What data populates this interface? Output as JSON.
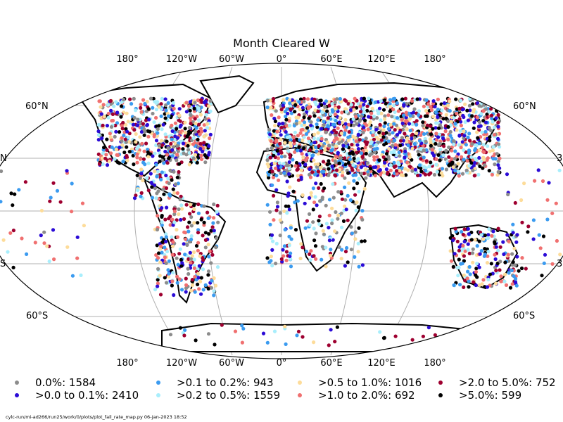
{
  "title": "Month Cleared W",
  "lon_labels_top": [
    "180°",
    "120°W",
    "60°W",
    "0°",
    "60°E",
    "120°E",
    "180°"
  ],
  "lon_labels_bottom": [
    "180°",
    "120°W",
    "60°W",
    "0°",
    "60°E",
    "120°E",
    "180°"
  ],
  "lat_labels_left": [
    "60°N",
    "N",
    "S",
    "60°S"
  ],
  "lat_labels_right": [
    "60°N",
    "3",
    "3",
    "60°S"
  ],
  "legend": [
    {
      "label": "0.0%: 1584",
      "color": "#8c8c8c"
    },
    {
      "label": ">0.0 to 0.1%: 2410",
      "color": "#2b0bd6"
    },
    {
      "label": ">0.1 to 0.2%: 943",
      "color": "#3b9bf0"
    },
    {
      "label": ">0.2 to 0.5%: 1559",
      "color": "#a8eefc"
    },
    {
      "label": ">0.5 to 1.0%: 1016",
      "color": "#fddc9a"
    },
    {
      "label": ">1.0 to 2.0%: 692",
      "color": "#f07070"
    },
    {
      "label": ">2.0 to 5.0%: 752",
      "color": "#9e0030"
    },
    {
      "label": ">5.0%: 599",
      "color": "#000000"
    }
  ],
  "footer": "cylc-run/mi-ad266/run25/work/0/plots/plot_fail_rate_map.py   06-Jan-2023 18:52"
}
